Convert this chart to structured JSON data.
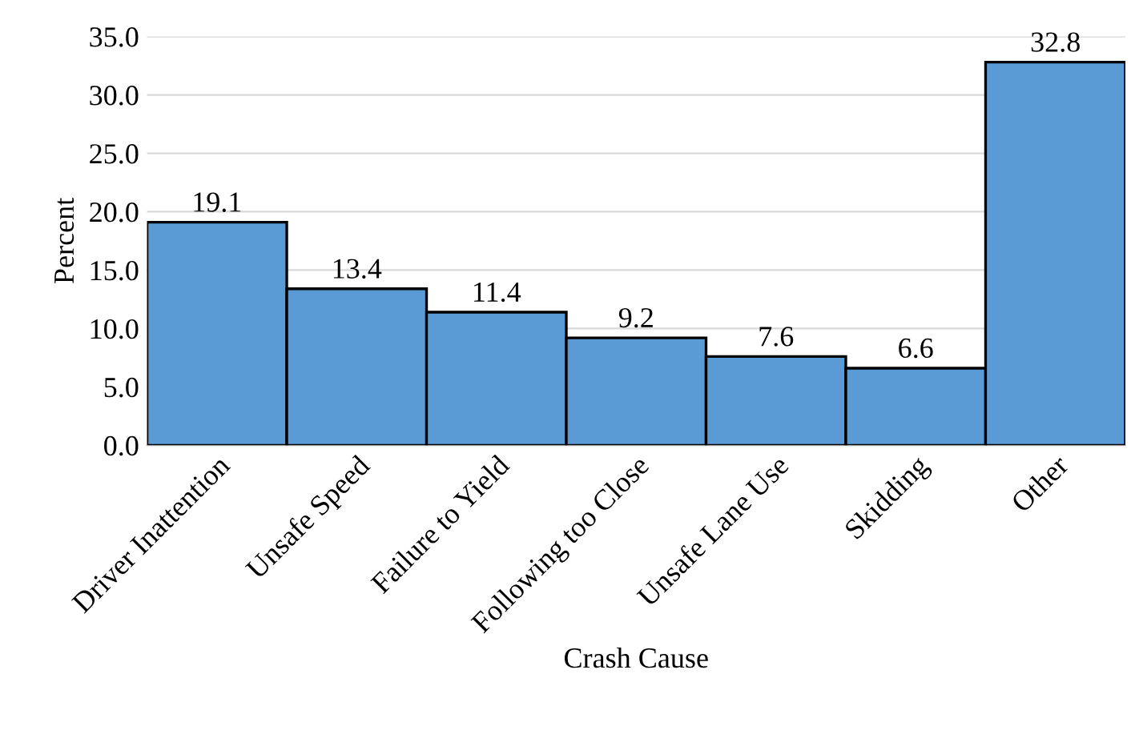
{
  "chart_data": {
    "type": "bar",
    "xlabel": "Crash Cause",
    "ylabel": "Percent",
    "categories": [
      "Driver Inattention",
      "Unsafe Speed",
      "Failure to Yield",
      "Following too Close",
      "Unsafe Lane Use",
      "Skidding",
      "Other"
    ],
    "values": [
      19.1,
      13.4,
      11.4,
      9.2,
      7.6,
      6.6,
      32.8
    ],
    "color": "#5b9bd5",
    "ylim": [
      0,
      35
    ],
    "yticks": [
      {
        "value": 0,
        "label": "0.0"
      },
      {
        "value": 5,
        "label": "5.0"
      },
      {
        "value": 10,
        "label": "10.0"
      },
      {
        "value": 15,
        "label": "15.0"
      },
      {
        "value": 20,
        "label": "20.0"
      },
      {
        "value": 25,
        "label": "25.0"
      },
      {
        "value": 30,
        "label": "30.0"
      },
      {
        "value": 35,
        "label": "35.0"
      }
    ],
    "grid": "y",
    "data_labels": true
  }
}
